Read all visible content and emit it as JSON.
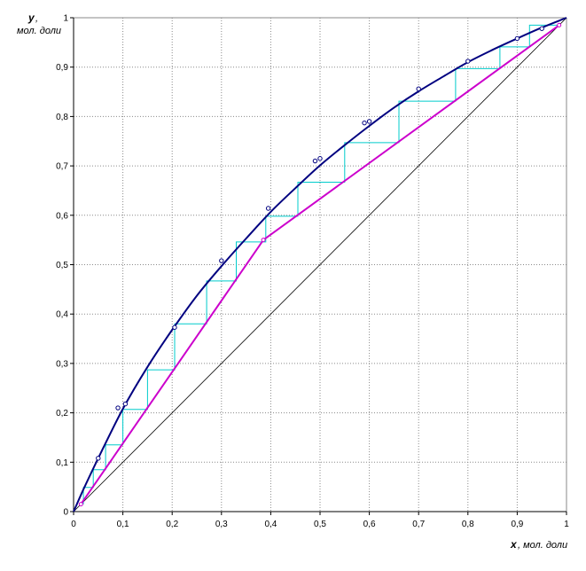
{
  "chart_data": {
    "type": "line",
    "title": "",
    "xlabel": {
      "var": "x",
      "rest": ", мол. доли"
    },
    "ylabel": {
      "var": "y",
      "comma": ",",
      "rest": "мол. доли"
    },
    "xlim": [
      0,
      1
    ],
    "ylim": [
      0,
      1
    ],
    "grid": "dotted",
    "x_ticks": [
      {
        "v": 0,
        "label": "0"
      },
      {
        "v": 0.1,
        "label": "0,1"
      },
      {
        "v": 0.2,
        "label": "0,2"
      },
      {
        "v": 0.3,
        "label": "0,3"
      },
      {
        "v": 0.4,
        "label": "0,4"
      },
      {
        "v": 0.5,
        "label": "0,5"
      },
      {
        "v": 0.6,
        "label": "0,6"
      },
      {
        "v": 0.7,
        "label": "0,7"
      },
      {
        "v": 0.8,
        "label": "0,8"
      },
      {
        "v": 0.9,
        "label": "0,9"
      },
      {
        "v": 1,
        "label": "1"
      }
    ],
    "y_ticks": [
      {
        "v": 0,
        "label": "0"
      },
      {
        "v": 0.1,
        "label": "0,1"
      },
      {
        "v": 0.2,
        "label": "0,2"
      },
      {
        "v": 0.3,
        "label": "0,3"
      },
      {
        "v": 0.4,
        "label": "0,4"
      },
      {
        "v": 0.5,
        "label": "0,5"
      },
      {
        "v": 0.6,
        "label": "0,6"
      },
      {
        "v": 0.7,
        "label": "0,7"
      },
      {
        "v": 0.8,
        "label": "0,8"
      },
      {
        "v": 0.9,
        "label": "0,9"
      },
      {
        "v": 1,
        "label": "1"
      }
    ],
    "series": [
      {
        "role": "diagonal",
        "color": "#000000",
        "points": [
          [
            0,
            0
          ],
          [
            1,
            1
          ]
        ]
      },
      {
        "role": "equilibrium-curve",
        "color": "#000080",
        "points": [
          [
            0,
            0
          ],
          [
            0.02,
            0.045
          ],
          [
            0.05,
            0.108
          ],
          [
            0.1,
            0.208
          ],
          [
            0.15,
            0.293
          ],
          [
            0.2,
            0.368
          ],
          [
            0.25,
            0.437
          ],
          [
            0.3,
            0.497
          ],
          [
            0.35,
            0.553
          ],
          [
            0.4,
            0.607
          ],
          [
            0.45,
            0.655
          ],
          [
            0.5,
            0.701
          ],
          [
            0.55,
            0.742
          ],
          [
            0.6,
            0.781
          ],
          [
            0.65,
            0.818
          ],
          [
            0.7,
            0.851
          ],
          [
            0.75,
            0.881
          ],
          [
            0.8,
            0.91
          ],
          [
            0.85,
            0.935
          ],
          [
            0.9,
            0.958
          ],
          [
            0.95,
            0.98
          ],
          [
            1,
            1
          ]
        ]
      },
      {
        "role": "equilibrium-data-points",
        "color": "#000080",
        "points": [
          [
            0.05,
            0.108
          ],
          [
            0.09,
            0.21
          ],
          [
            0.105,
            0.218
          ],
          [
            0.205,
            0.373
          ],
          [
            0.3,
            0.508
          ],
          [
            0.395,
            0.614
          ],
          [
            0.49,
            0.71
          ],
          [
            0.5,
            0.715
          ],
          [
            0.59,
            0.787
          ],
          [
            0.6,
            0.79
          ],
          [
            0.7,
            0.856
          ],
          [
            0.8,
            0.912
          ],
          [
            0.9,
            0.958
          ],
          [
            0.95,
            0.978
          ]
        ]
      },
      {
        "role": "operating-lines",
        "color": "#cc00cc",
        "points": [
          [
            0.015,
            0.015
          ],
          [
            0.385,
            0.55
          ],
          [
            0.985,
            0.985
          ]
        ]
      },
      {
        "role": "steps",
        "color": "#00cccc",
        "points": [
          [
            0.985,
            0.985
          ],
          [
            0.925,
            0.985
          ],
          [
            0.925,
            0.941
          ],
          [
            0.865,
            0.941
          ],
          [
            0.865,
            0.897
          ],
          [
            0.775,
            0.897
          ],
          [
            0.775,
            0.831
          ],
          [
            0.66,
            0.831
          ],
          [
            0.66,
            0.747
          ],
          [
            0.55,
            0.747
          ],
          [
            0.55,
            0.667
          ],
          [
            0.455,
            0.667
          ],
          [
            0.455,
            0.598
          ],
          [
            0.39,
            0.598
          ],
          [
            0.39,
            0.546
          ],
          [
            0.33,
            0.546
          ],
          [
            0.33,
            0.467
          ],
          [
            0.27,
            0.467
          ],
          [
            0.27,
            0.38
          ],
          [
            0.205,
            0.38
          ],
          [
            0.205,
            0.287
          ],
          [
            0.15,
            0.287
          ],
          [
            0.15,
            0.207
          ],
          [
            0.1,
            0.207
          ],
          [
            0.1,
            0.135
          ],
          [
            0.065,
            0.135
          ],
          [
            0.065,
            0.085
          ],
          [
            0.04,
            0.085
          ],
          [
            0.04,
            0.049
          ],
          [
            0.02,
            0.049
          ],
          [
            0.02,
            0.015
          ]
        ]
      }
    ]
  }
}
